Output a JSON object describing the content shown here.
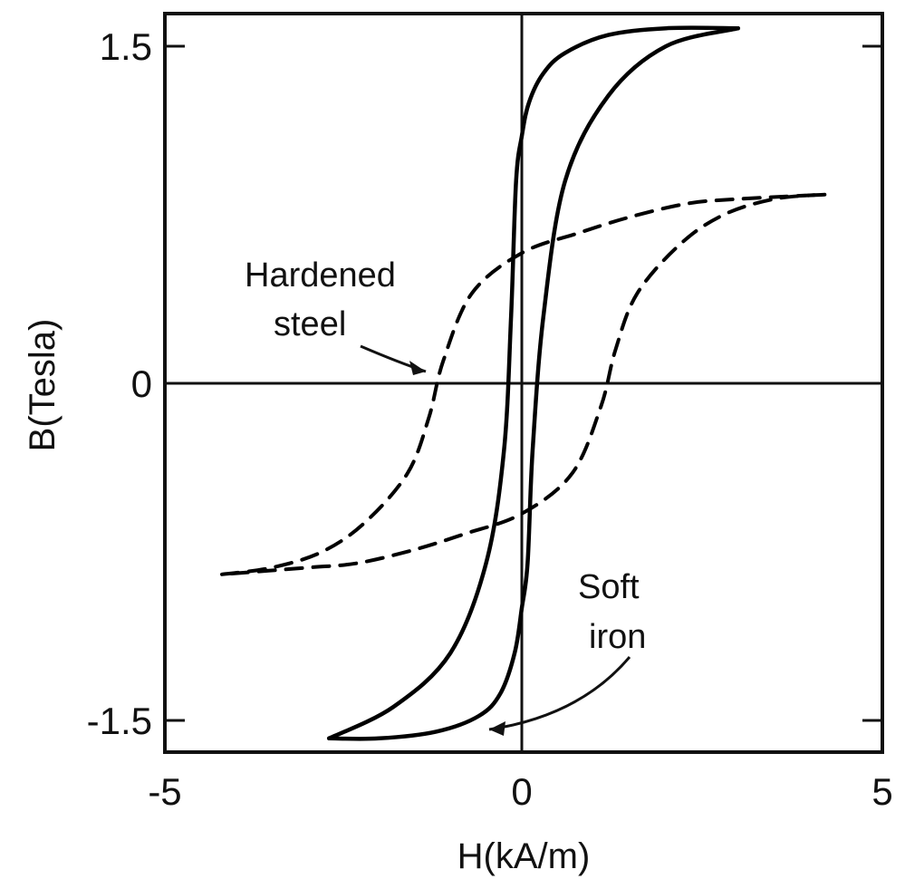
{
  "chart_data": {
    "type": "line",
    "xlabel": "H(kA/m)",
    "ylabel": "B(Tesla)",
    "xlim": [
      -5,
      5
    ],
    "ylim": [
      -1.6,
      1.6
    ],
    "x_ticks": [
      "-5",
      "0",
      "5"
    ],
    "y_ticks": [
      "1.5",
      "0",
      "-1.5"
    ],
    "grid": false,
    "legend": "none",
    "series": [
      {
        "line_style": "solid",
        "color": "#000000",
        "upper_branch": {
          "x": [
            -2.7,
            -1.8,
            -1.0,
            -0.5,
            -0.25,
            -0.15,
            -0.08,
            0.0,
            0.1,
            0.3,
            0.6,
            1.2,
            2.0,
            3.0
          ],
          "y": [
            -1.58,
            -1.44,
            -1.2,
            -0.8,
            -0.3,
            0.3,
            0.9,
            1.1,
            1.25,
            1.38,
            1.47,
            1.55,
            1.58,
            1.58
          ]
        },
        "lower_branch": {
          "x": [
            3.0,
            2.0,
            1.2,
            0.6,
            0.3,
            0.15,
            0.08,
            0.0,
            -0.1,
            -0.3,
            -0.6,
            -1.2,
            -2.0,
            -2.7
          ],
          "y": [
            1.58,
            1.5,
            1.28,
            0.9,
            0.3,
            -0.3,
            -0.8,
            -1.0,
            -1.2,
            -1.38,
            -1.48,
            -1.55,
            -1.58,
            -1.58
          ]
        }
      },
      {
        "line_style": "dashed",
        "color": "#000000",
        "upper_branch": {
          "x": [
            -4.2,
            -3.5,
            -2.8,
            -2.2,
            -1.6,
            -1.3,
            -1.1,
            -0.7,
            0.0,
            0.8,
            1.5,
            2.3,
            3.0,
            4.2
          ],
          "y": [
            -0.85,
            -0.82,
            -0.75,
            -0.62,
            -0.4,
            -0.15,
            0.1,
            0.4,
            0.58,
            0.67,
            0.74,
            0.8,
            0.82,
            0.84
          ]
        },
        "lower_branch": {
          "x": [
            4.2,
            3.5,
            2.8,
            2.2,
            1.6,
            1.3,
            1.1,
            0.7,
            0.0,
            -0.8,
            -1.5,
            -2.3,
            -3.0,
            -4.2
          ],
          "y": [
            0.84,
            0.82,
            0.75,
            0.62,
            0.4,
            0.15,
            -0.1,
            -0.4,
            -0.58,
            -0.67,
            -0.74,
            -0.8,
            -0.82,
            -0.85
          ]
        }
      }
    ],
    "annotations": [
      {
        "id": "hardened-steel",
        "lines": [
          "Hardened",
          "steel"
        ],
        "points_to": {
          "x": -1.2,
          "y": 0.05
        }
      },
      {
        "id": "soft-iron",
        "lines": [
          "Soft",
          "iron"
        ],
        "points_to": {
          "x": -0.7,
          "y": -1.45
        }
      }
    ]
  }
}
